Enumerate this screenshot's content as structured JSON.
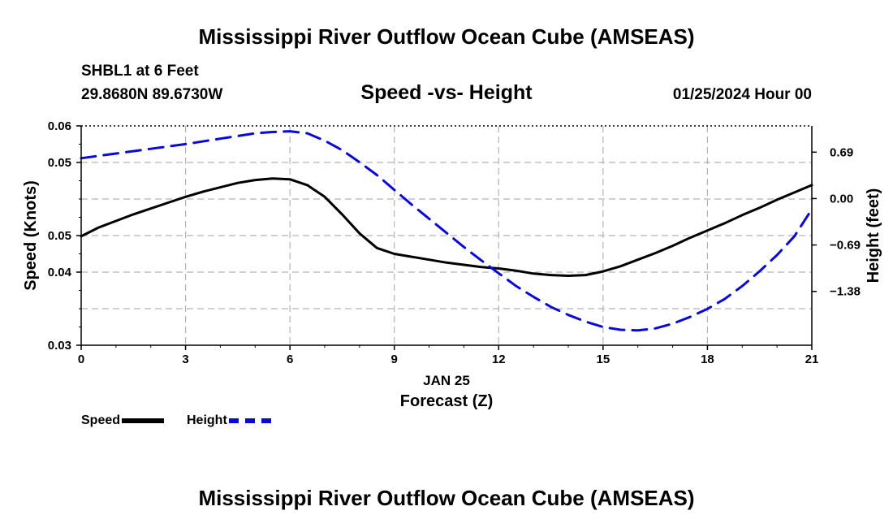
{
  "header": {
    "title": "Mississippi River Outflow Ocean Cube (AMSEAS)",
    "station": "SHBL1 at 6 Feet",
    "coordinates": "29.8680N  89.6730W",
    "subtitle": "Speed -vs- Height",
    "datetime": "01/25/2024 Hour 00"
  },
  "footer": {
    "title": "Mississippi River Outflow Ocean Cube (AMSEAS)"
  },
  "legend": {
    "speed_label": "Speed",
    "height_label": "Height"
  },
  "colors": {
    "speed": "#000000",
    "height": "#0a0ad6",
    "grid": "#b4b4b4"
  },
  "chart_data": {
    "type": "line",
    "title": "Speed -vs- Height",
    "xlabel": "Forecast (Z)",
    "xsublabel": "JAN 25",
    "ylabel": "Speed (Knots)",
    "y2label": "Height (feet)",
    "xlim": [
      0,
      21
    ],
    "ylim": [
      0.03,
      0.06
    ],
    "y2lim": [
      -2.18,
      1.08
    ],
    "x_ticks": [
      0,
      3,
      6,
      9,
      12,
      15,
      18,
      21
    ],
    "x_tick_labels": [
      "0",
      "3",
      "6",
      "9",
      "12",
      "15",
      "18",
      "21"
    ],
    "y_ticks": [
      0.03,
      0.04,
      0.05,
      0.06
    ],
    "y_tick_labels": [
      "0.03",
      "0.04",
      "0.05",
      "0.05",
      "0.06"
    ],
    "y_tick_label_values": [
      0.03,
      0.04,
      0.045,
      0.05,
      0.055,
      0.06
    ],
    "y_tick_labels_shown": [
      {
        "value": 0.03,
        "label": "0.03"
      },
      {
        "value": 0.04,
        "label": "0.04"
      },
      {
        "value": 0.045,
        "label": "0.05"
      },
      {
        "value": 0.055,
        "label": "0.05"
      },
      {
        "value": 0.06,
        "label": "0.06"
      }
    ],
    "y2_ticks_shown": [
      {
        "value": 0.69,
        "label": "0.69"
      },
      {
        "value": 0.0,
        "label": "0.00"
      },
      {
        "value": -0.69,
        "label": "−0.69"
      },
      {
        "value": -1.38,
        "label": "−1.38"
      }
    ],
    "grid": true,
    "series": [
      {
        "name": "Speed",
        "axis": "left",
        "style": "solid",
        "x": [
          0,
          0.5,
          1,
          1.5,
          2,
          2.5,
          3,
          3.5,
          4,
          4.5,
          5,
          5.5,
          6,
          6.5,
          7,
          7.5,
          8,
          8.5,
          9,
          9.5,
          10,
          10.5,
          11,
          11.5,
          12,
          12.5,
          13,
          13.5,
          14,
          14.5,
          15,
          15.5,
          16,
          16.5,
          17,
          17.5,
          18,
          18.5,
          19,
          19.5,
          20,
          20.5,
          21
        ],
        "values": [
          0.0449,
          0.0461,
          0.047,
          0.0479,
          0.0487,
          0.0495,
          0.0503,
          0.051,
          0.0516,
          0.0522,
          0.0526,
          0.0528,
          0.0527,
          0.0519,
          0.0503,
          0.0479,
          0.0453,
          0.0433,
          0.0425,
          0.0421,
          0.0417,
          0.0413,
          0.041,
          0.0407,
          0.0405,
          0.0402,
          0.0398,
          0.0396,
          0.0395,
          0.0396,
          0.0401,
          0.0408,
          0.0417,
          0.0426,
          0.0436,
          0.0447,
          0.0457,
          0.0467,
          0.0478,
          0.0488,
          0.0499,
          0.0509,
          0.0519
        ]
      },
      {
        "name": "Height",
        "axis": "right",
        "style": "dashed",
        "x": [
          0,
          1,
          2,
          3,
          4,
          5,
          5.5,
          6,
          6.5,
          7,
          7.5,
          8,
          8.5,
          9,
          9.5,
          10,
          10.5,
          11,
          11.5,
          12,
          12.5,
          13,
          13.5,
          14,
          14.5,
          15,
          15.5,
          16,
          16.5,
          17,
          17.5,
          18,
          18.5,
          19,
          19.5,
          20,
          20.5,
          21
        ],
        "values": [
          0.6,
          0.67,
          0.74,
          0.81,
          0.89,
          0.97,
          0.99,
          1.0,
          0.97,
          0.86,
          0.72,
          0.54,
          0.35,
          0.13,
          -0.09,
          -0.3,
          -0.51,
          -0.72,
          -0.92,
          -1.11,
          -1.3,
          -1.46,
          -1.61,
          -1.73,
          -1.83,
          -1.91,
          -1.95,
          -1.96,
          -1.93,
          -1.86,
          -1.76,
          -1.64,
          -1.49,
          -1.3,
          -1.08,
          -0.84,
          -0.56,
          -0.16
        ]
      }
    ]
  }
}
